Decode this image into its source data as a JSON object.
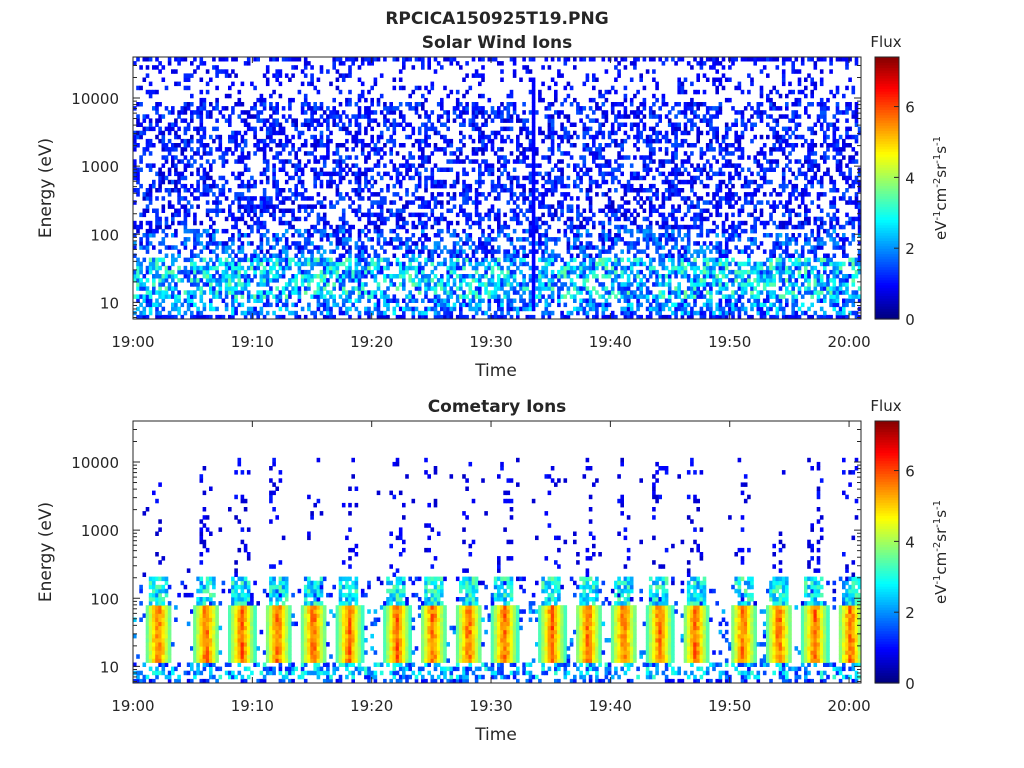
{
  "figure": {
    "title": "RPCICA150925T19.PNG"
  },
  "chart_data": [
    {
      "type": "heatmap",
      "title": "Solar Wind Ions",
      "xlabel": "Time",
      "ylabel": "Energy (eV)",
      "y_scale": "log",
      "ylim": [
        5.7,
        40000
      ],
      "xlim": [
        "19:00",
        "20:01"
      ],
      "x_ticks": [
        "19:00",
        "19:10",
        "19:20",
        "19:30",
        "19:40",
        "19:50",
        "20:00"
      ],
      "y_ticks": [
        "10",
        "100",
        "1000",
        "10000"
      ],
      "colorbar": {
        "label_top": "Flux",
        "unit_label": "eV-1cm-2sr-1s-1",
        "range": [
          0,
          7.4
        ],
        "ticks": [
          "0",
          "2",
          "4",
          "6"
        ],
        "colormap": "jet"
      },
      "description_values": {
        "background_flux_above_100eV": 0.8,
        "typical_flux_below_50eV": 3.0,
        "peak_flux": 4.0
      }
    },
    {
      "type": "heatmap",
      "title": "Cometary Ions",
      "xlabel": "Time",
      "ylabel": "Energy (eV)",
      "y_scale": "log",
      "ylim": [
        5.7,
        40000
      ],
      "xlim": [
        "19:00",
        "20:01"
      ],
      "x_ticks": [
        "19:00",
        "19:10",
        "19:20",
        "19:30",
        "19:40",
        "19:50",
        "20:00"
      ],
      "y_ticks": [
        "10",
        "100",
        "1000",
        "10000"
      ],
      "colorbar": {
        "label_top": "Flux",
        "unit_label": "eV-1cm-2sr-1s-1",
        "range": [
          0,
          7.4
        ],
        "ticks": [
          "0",
          "2",
          "4",
          "6"
        ],
        "colormap": "jet"
      },
      "burst_times": [
        "19:02",
        "19:06",
        "19:09",
        "19:12",
        "19:15",
        "19:18",
        "19:22",
        "19:25",
        "19:28",
        "19:31",
        "19:35",
        "19:38",
        "19:41",
        "19:44",
        "19:47",
        "19:51",
        "19:54",
        "19:57",
        "20:00"
      ],
      "burst_energy_range_eV": [
        12,
        80
      ],
      "burst_peak_flux": 6.8
    }
  ]
}
